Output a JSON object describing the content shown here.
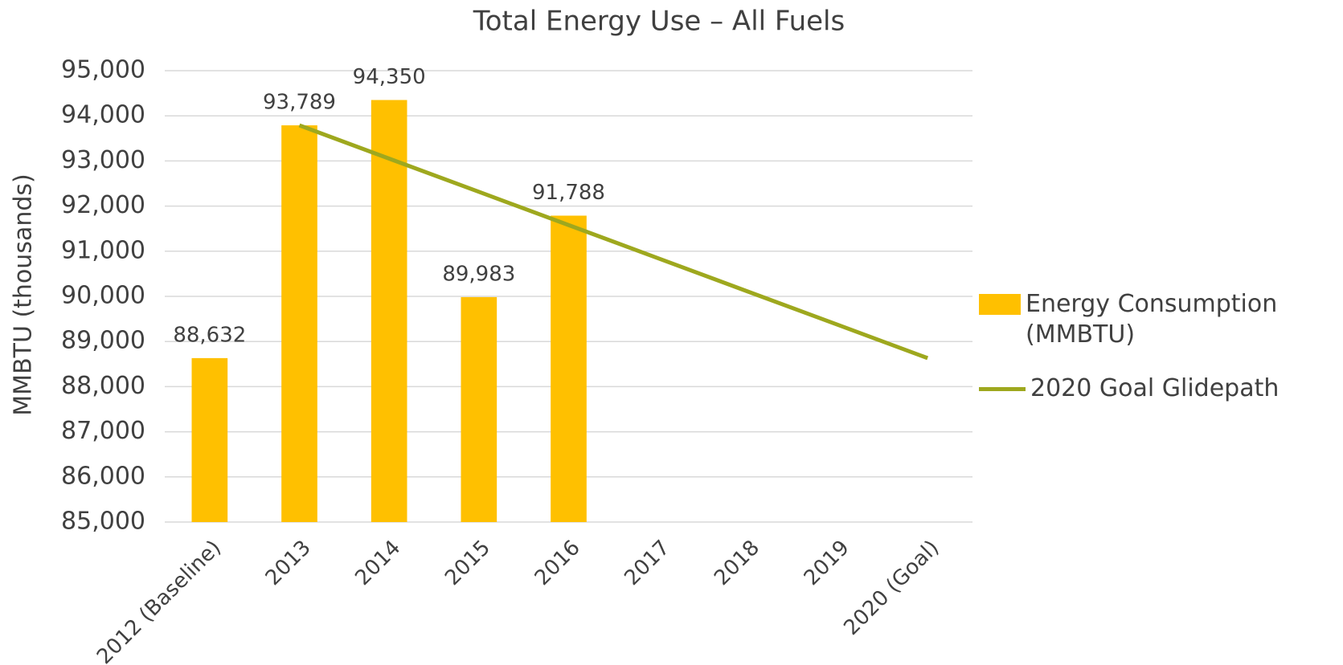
{
  "chart_data": {
    "type": "bar",
    "title": "Total Energy Use – All Fuels",
    "y_label": "MMBTU (thousands)",
    "categories": [
      "2012 (Baseline)",
      "2013",
      "2014",
      "2015",
      "2016",
      "2017",
      "2018",
      "2019",
      "2020 (Goal)"
    ],
    "series": [
      {
        "name": "Energy Consumption (MMBTU)",
        "type": "bar",
        "color": "#ffc000",
        "values": [
          88632,
          93789,
          94350,
          89983,
          91788,
          null,
          null,
          null,
          null
        ],
        "value_labels": [
          "88,632",
          "93,789",
          "94,350",
          "89,983",
          "91,788",
          null,
          null,
          null,
          null
        ]
      },
      {
        "name": "2020 Goal Glidepath",
        "type": "line",
        "color": "#9ea81e",
        "values": [
          null,
          93789,
          93052,
          92316,
          91579,
          90842,
          90105,
          89369,
          88632
        ]
      }
    ],
    "ylim": [
      85000,
      95000
    ],
    "yticks": [
      {
        "value": 85000,
        "label": "85,000"
      },
      {
        "value": 86000,
        "label": "86,000"
      },
      {
        "value": 87000,
        "label": "87,000"
      },
      {
        "value": 88000,
        "label": "88,000"
      },
      {
        "value": 89000,
        "label": "89,000"
      },
      {
        "value": 90000,
        "label": "90,000"
      },
      {
        "value": 91000,
        "label": "91,000"
      },
      {
        "value": 92000,
        "label": "92,000"
      },
      {
        "value": 93000,
        "label": "93,000"
      },
      {
        "value": 94000,
        "label": "94,000"
      },
      {
        "value": 95000,
        "label": "95,000"
      }
    ],
    "grid": true
  }
}
